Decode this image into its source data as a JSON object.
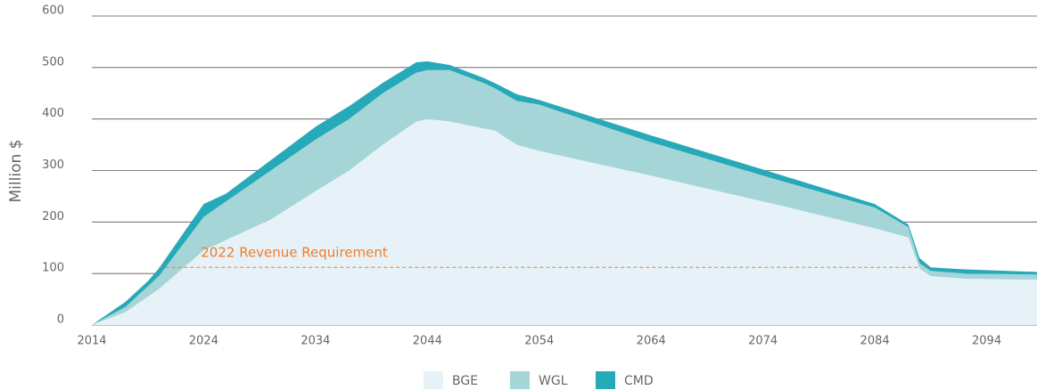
{
  "chart_data": {
    "type": "stacked_area",
    "ylabel": "Million $",
    "x": [
      2014,
      2017,
      2019,
      2020,
      2024,
      2026,
      2030,
      2034,
      2037,
      2040,
      2043,
      2044,
      2046,
      2049,
      2050,
      2052,
      2054,
      2064,
      2074,
      2084,
      2087,
      2088,
      2089,
      2092,
      2098.5
    ],
    "series": [
      {
        "name": "BGE",
        "color": "#e6f2f7",
        "values": [
          0,
          25,
          55,
          70,
          145,
          165,
          205,
          260,
          300,
          350,
          395,
          400,
          395,
          382,
          378,
          350,
          338,
          290,
          240,
          188,
          170,
          110,
          95,
          90,
          88
        ]
      },
      {
        "name": "WGL",
        "color": "#a5d5d7",
        "values": [
          0,
          10,
          20,
          25,
          65,
          75,
          95,
          100,
          100,
          100,
          95,
          95,
          100,
          88,
          82,
          85,
          90,
          65,
          50,
          40,
          20,
          10,
          10,
          10,
          10
        ]
      },
      {
        "name": "CMD",
        "color": "#26a9b9",
        "values": [
          0,
          10,
          10,
          15,
          25,
          15,
          20,
          25,
          25,
          20,
          20,
          17,
          10,
          10,
          10,
          13,
          9,
          13,
          12,
          7,
          5,
          10,
          7,
          8,
          5
        ]
      }
    ],
    "xlim": [
      2014,
      2098.5
    ],
    "xticks": [
      2014,
      2024,
      2034,
      2044,
      2054,
      2064,
      2074,
      2084,
      2094
    ],
    "ylim": [
      0,
      600
    ],
    "yticks": [
      0,
      100,
      200,
      300,
      400,
      500,
      600
    ],
    "grid": true,
    "legend": "bottom",
    "annotation": {
      "text": "2022 Revenue Requirement",
      "value": 112,
      "xrange": [
        2020,
        2088
      ],
      "color": "#f07d2a"
    }
  }
}
